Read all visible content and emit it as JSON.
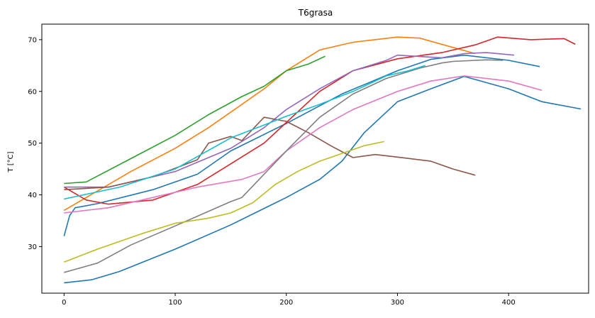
{
  "chart_data": {
    "type": "line",
    "title": "T6grasa",
    "xlabel": "",
    "ylabel": "T [°C]",
    "xlim": [
      -20,
      472
    ],
    "ylim": [
      21,
      73
    ],
    "xticks": [
      0,
      100,
      200,
      300,
      400
    ],
    "yticks": [
      30,
      40,
      50,
      60,
      70
    ],
    "grid": false,
    "legend": "none",
    "series": [
      {
        "color": "#1f77b4",
        "points": [
          [
            0,
            23
          ],
          [
            25,
            23.6
          ],
          [
            50,
            25.2
          ],
          [
            100,
            29.5
          ],
          [
            150,
            34.2
          ],
          [
            200,
            39.5
          ],
          [
            230,
            43
          ],
          [
            250,
            46.5
          ],
          [
            270,
            52
          ],
          [
            300,
            58
          ],
          [
            330,
            60.5
          ],
          [
            360,
            62.9
          ],
          [
            400,
            60.5
          ],
          [
            430,
            58
          ],
          [
            465,
            56.6
          ]
        ]
      },
      {
        "color": "#1f77b4",
        "points": [
          [
            0,
            32
          ],
          [
            5,
            36
          ],
          [
            10,
            37.5
          ],
          [
            30,
            38.3
          ],
          [
            80,
            41
          ],
          [
            120,
            44
          ],
          [
            150,
            48.5
          ],
          [
            200,
            53.8
          ],
          [
            250,
            59.5
          ],
          [
            300,
            64
          ],
          [
            330,
            66.2
          ],
          [
            360,
            67
          ],
          [
            400,
            66
          ],
          [
            428,
            64.8
          ]
        ]
      },
      {
        "color": "#ff7f0e",
        "points": [
          [
            0,
            37
          ],
          [
            20,
            39.5
          ],
          [
            60,
            44.5
          ],
          [
            100,
            49
          ],
          [
            130,
            53
          ],
          [
            160,
            57.5
          ],
          [
            180,
            60.5
          ],
          [
            200,
            64
          ],
          [
            230,
            68
          ],
          [
            260,
            69.5
          ],
          [
            300,
            70.5
          ],
          [
            320,
            70.3
          ],
          [
            350,
            68.5
          ],
          [
            370,
            67.3
          ]
        ]
      },
      {
        "color": "#2ca02c",
        "points": [
          [
            0,
            42.2
          ],
          [
            20,
            42.5
          ],
          [
            60,
            47
          ],
          [
            100,
            51.5
          ],
          [
            130,
            55.5
          ],
          [
            160,
            59
          ],
          [
            180,
            61
          ],
          [
            200,
            64
          ],
          [
            220,
            65.3
          ],
          [
            235,
            66.8
          ]
        ]
      },
      {
        "color": "#d62728",
        "points": [
          [
            0,
            41.5
          ],
          [
            20,
            39
          ],
          [
            40,
            38.2
          ],
          [
            80,
            39
          ],
          [
            120,
            42
          ],
          [
            150,
            46
          ],
          [
            180,
            50
          ],
          [
            200,
            54
          ],
          [
            230,
            60
          ],
          [
            260,
            64
          ],
          [
            300,
            66.3
          ],
          [
            340,
            67.5
          ],
          [
            370,
            69
          ],
          [
            390,
            70.5
          ],
          [
            420,
            70
          ],
          [
            450,
            70.2
          ],
          [
            460,
            69.1
          ]
        ]
      },
      {
        "color": "#9467bd",
        "points": [
          [
            0,
            41.5
          ],
          [
            40,
            41.5
          ],
          [
            100,
            44.5
          ],
          [
            150,
            49
          ],
          [
            180,
            53
          ],
          [
            200,
            56.5
          ],
          [
            230,
            60.5
          ],
          [
            260,
            64
          ],
          [
            290,
            66
          ],
          [
            300,
            67
          ],
          [
            340,
            66.5
          ],
          [
            360,
            67.3
          ],
          [
            380,
            67.5
          ],
          [
            405,
            67
          ]
        ]
      },
      {
        "color": "#8c564b",
        "points": [
          [
            0,
            41
          ],
          [
            40,
            41.5
          ],
          [
            80,
            43.5
          ],
          [
            120,
            46.8
          ],
          [
            130,
            50
          ],
          [
            150,
            51.3
          ],
          [
            160,
            50.5
          ],
          [
            180,
            55
          ],
          [
            200,
            54.2
          ],
          [
            220,
            52
          ],
          [
            240,
            49.5
          ],
          [
            260,
            47.2
          ],
          [
            280,
            47.8
          ],
          [
            300,
            47.3
          ],
          [
            330,
            46.5
          ],
          [
            350,
            45
          ],
          [
            370,
            43.8
          ]
        ]
      },
      {
        "color": "#e377c2",
        "points": [
          [
            0,
            36.5
          ],
          [
            40,
            37.5
          ],
          [
            80,
            39.5
          ],
          [
            120,
            41.5
          ],
          [
            160,
            43
          ],
          [
            180,
            44.5
          ],
          [
            200,
            48.5
          ],
          [
            230,
            53
          ],
          [
            260,
            56.5
          ],
          [
            300,
            60
          ],
          [
            330,
            62
          ],
          [
            360,
            63
          ],
          [
            400,
            62
          ],
          [
            430,
            60.2
          ]
        ]
      },
      {
        "color": "#7f7f7f",
        "points": [
          [
            0,
            25
          ],
          [
            30,
            26.8
          ],
          [
            60,
            30.3
          ],
          [
            100,
            34
          ],
          [
            150,
            38.7
          ],
          [
            160,
            39.5
          ],
          [
            180,
            44
          ],
          [
            200,
            48.5
          ],
          [
            230,
            55
          ],
          [
            260,
            59.5
          ],
          [
            290,
            62.5
          ],
          [
            320,
            64.5
          ],
          [
            340,
            65.5
          ],
          [
            350,
            65.8
          ],
          [
            380,
            66.1
          ],
          [
            395,
            66
          ]
        ]
      },
      {
        "color": "#bcbd22",
        "points": [
          [
            0,
            27
          ],
          [
            30,
            29.5
          ],
          [
            70,
            32.5
          ],
          [
            100,
            34.5
          ],
          [
            130,
            35.5
          ],
          [
            150,
            36.5
          ],
          [
            170,
            38.5
          ],
          [
            190,
            42
          ],
          [
            210,
            44.5
          ],
          [
            230,
            46.5
          ],
          [
            250,
            48
          ],
          [
            270,
            49.5
          ],
          [
            288,
            50.3
          ]
        ]
      },
      {
        "color": "#17becf",
        "points": [
          [
            0,
            39.2
          ],
          [
            50,
            41.5
          ],
          [
            100,
            45
          ],
          [
            150,
            51
          ],
          [
            180,
            53.5
          ],
          [
            200,
            55.2
          ],
          [
            230,
            57.5
          ],
          [
            260,
            60
          ],
          [
            290,
            63
          ],
          [
            310,
            64
          ],
          [
            325,
            65
          ]
        ]
      }
    ]
  }
}
